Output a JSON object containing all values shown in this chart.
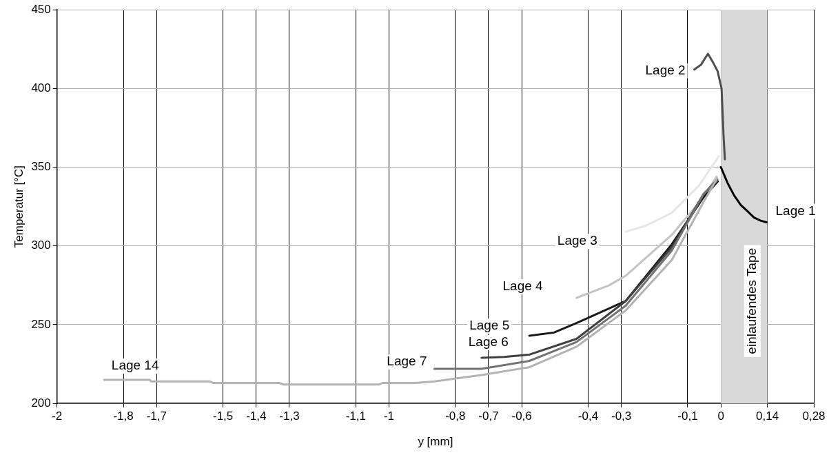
{
  "chart_data": {
    "type": "line",
    "xlabel": "y [mm]",
    "ylabel": "Temperatur [°C]",
    "xlim": [
      -2,
      0.28
    ],
    "xticks": [
      -2,
      {
        "value": -1.8,
        "label": "-1,8"
      },
      {
        "value": -1.7,
        "label": "-1,7"
      },
      {
        "value": -1.5,
        "label": "-1,5"
      },
      {
        "value": -1.4,
        "label": "-1,4"
      },
      {
        "value": -1.3,
        "label": "-1,3"
      },
      {
        "value": -1.1,
        "label": "-1,1"
      },
      -1,
      {
        "value": -0.8,
        "label": "-0,8"
      },
      {
        "value": -0.7,
        "label": "-0,7"
      },
      {
        "value": -0.6,
        "label": "-0,6"
      },
      {
        "value": -0.4,
        "label": "-0,4"
      },
      {
        "value": -0.3,
        "label": "-0,3"
      },
      {
        "value": -0.1,
        "label": "-0,1"
      },
      0,
      {
        "value": 0.14,
        "label": "0,14"
      },
      {
        "value": 0.28,
        "label": "0,28"
      }
    ],
    "ylim": [
      200,
      450
    ],
    "yticks": [
      200,
      250,
      300,
      350,
      400,
      450
    ],
    "grid": true,
    "legend": false,
    "marker": "none",
    "line_style": "solid",
    "bands": [
      {
        "axis": "x",
        "from": 0,
        "to": 0.14,
        "label": "einlaufendes Tape",
        "color": "#d9d9d9"
      }
    ],
    "series": [
      {
        "name": "Lage 14",
        "color": "#b3b3b3",
        "x": [
          -1.858,
          -1.72,
          -1.717,
          -1.54,
          -1.53,
          -1.33,
          -1.318,
          -1.03,
          -1.02,
          -0.92,
          -0.863,
          -0.721,
          -0.577,
          -0.435,
          -0.287,
          -0.148,
          -0.052,
          -0.011
        ],
        "values": [
          215,
          215,
          214,
          214,
          213,
          213,
          212,
          212,
          213,
          213,
          214,
          218,
          223,
          236,
          259,
          291,
          328,
          343
        ]
      },
      {
        "name": "Lage 7",
        "color": "#737373",
        "x": [
          -0.863,
          -0.795,
          -0.721,
          -0.577,
          -0.435,
          -0.287,
          -0.148,
          -0.052,
          -0.013
        ],
        "values": [
          222,
          222,
          222,
          227,
          239,
          262,
          297,
          333,
          341
        ]
      },
      {
        "name": "Lage 6",
        "color": "#404040",
        "x": [
          -0.721,
          -0.653,
          -0.577,
          -0.435,
          -0.287,
          -0.148,
          -0.052,
          -0.011
        ],
        "values": [
          229,
          229.5,
          231,
          241,
          265,
          299,
          333,
          342
        ]
      },
      {
        "name": "Lage 5",
        "color": "#1a1a1a",
        "x": [
          -0.577,
          -0.503,
          -0.435,
          -0.287,
          -0.148,
          -0.052,
          -0.009
        ],
        "values": [
          243,
          245,
          251,
          265,
          301,
          331,
          341
        ]
      },
      {
        "name": "Lage 4",
        "color": "#c4c4c4",
        "x": [
          -0.435,
          -0.337,
          -0.287,
          -0.148,
          -0.052,
          -0.013
        ],
        "values": [
          267,
          275,
          281,
          307,
          331,
          344
        ]
      },
      {
        "name": "Lage 3",
        "color": "#e6e6e6",
        "x": [
          -0.287,
          -0.224,
          -0.148,
          -0.067,
          -0.006
        ],
        "values": [
          309,
          313,
          321,
          338,
          357
        ]
      },
      {
        "name": "Lage 2",
        "color": "#4d4d4d",
        "x": [
          -0.08,
          -0.06,
          -0.039,
          -0.025,
          -0.01,
          0.002,
          0.008,
          0.012
        ],
        "values": [
          412,
          415,
          422,
          417,
          411,
          400,
          370,
          355
        ]
      },
      {
        "name": "Lage 1",
        "color": "#000000",
        "x": [
          0,
          0.02,
          0.04,
          0.06,
          0.08,
          0.1,
          0.12,
          0.138
        ],
        "values": [
          350,
          340,
          332,
          326,
          322,
          318,
          316,
          315
        ]
      }
    ]
  }
}
